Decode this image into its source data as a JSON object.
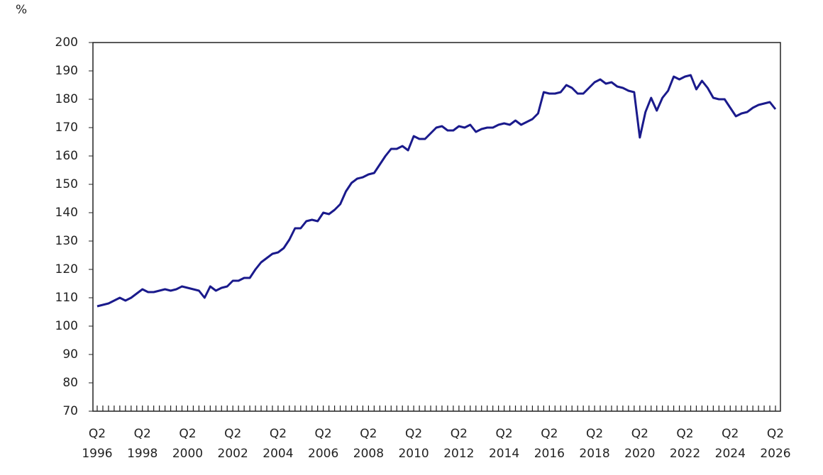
{
  "chart_data": {
    "type": "line",
    "y_unit": "%",
    "categories": [
      "Q2 1996",
      null,
      null,
      null,
      null,
      null,
      null,
      null,
      "Q2 1998",
      null,
      null,
      null,
      null,
      null,
      null,
      null,
      "Q2 2000",
      null,
      null,
      null,
      null,
      null,
      null,
      null,
      "Q2 2002",
      null,
      null,
      null,
      null,
      null,
      null,
      null,
      "Q2 2004",
      null,
      null,
      null,
      null,
      null,
      null,
      null,
      "Q2 2006",
      null,
      null,
      null,
      null,
      null,
      null,
      null,
      "Q2 2008",
      null,
      null,
      null,
      null,
      null,
      null,
      null,
      "Q2 2010",
      null,
      null,
      null,
      null,
      null,
      null,
      null,
      "Q2 2012",
      null,
      null,
      null,
      null,
      null,
      null,
      null,
      "Q2 2014",
      null,
      null,
      null,
      null,
      null,
      null,
      null,
      "Q2 2016",
      null,
      null,
      null,
      null,
      null,
      null,
      null,
      "Q2 2018",
      null,
      null,
      null,
      null,
      null,
      null,
      null,
      "Q2 2020",
      null,
      null,
      null,
      null,
      null,
      null,
      null,
      "Q2 2022",
      null,
      null,
      null,
      null,
      null,
      null,
      null,
      "Q2 2024",
      null,
      null,
      null,
      null,
      null,
      null,
      null,
      "Q2 2026"
    ],
    "series": [
      {
        "color": "#1a1a8c",
        "values": [
          107,
          107.5,
          108,
          109,
          110,
          109,
          110,
          111.5,
          113,
          112,
          112,
          112.5,
          113,
          112.5,
          113,
          114,
          113.5,
          113,
          112.5,
          110,
          114,
          112.5,
          113.5,
          114,
          116,
          116,
          117,
          117,
          120,
          122.5,
          124,
          125.5,
          126,
          127.5,
          130.5,
          134.5,
          134.5,
          137,
          137.5,
          137,
          140,
          139.5,
          141,
          143,
          147.5,
          150.5,
          152,
          152.5,
          153.5,
          154,
          157,
          160,
          162.5,
          162.5,
          163.5,
          162,
          167,
          166,
          166,
          168,
          170,
          170.5,
          169,
          169,
          170.5,
          170,
          171,
          168.5,
          169.5,
          170,
          170,
          171,
          171.5,
          171,
          172.5,
          171,
          172,
          173,
          175,
          182.5,
          182,
          182,
          182.5,
          185,
          184,
          182,
          182,
          184,
          186,
          187,
          185.5,
          186,
          184.5,
          184,
          183,
          182.5,
          166.5,
          175.5,
          180.5,
          176,
          180.5,
          183,
          188,
          187,
          188,
          188.5,
          183.5,
          186.5,
          184,
          180.5,
          180,
          180,
          177,
          174,
          175,
          175.5,
          177,
          178,
          178.5,
          179,
          176.5
        ]
      }
    ],
    "ylim": [
      70,
      200
    ],
    "yticks": [
      70,
      80,
      90,
      100,
      110,
      120,
      130,
      140,
      150,
      160,
      170,
      180,
      190,
      200
    ]
  }
}
